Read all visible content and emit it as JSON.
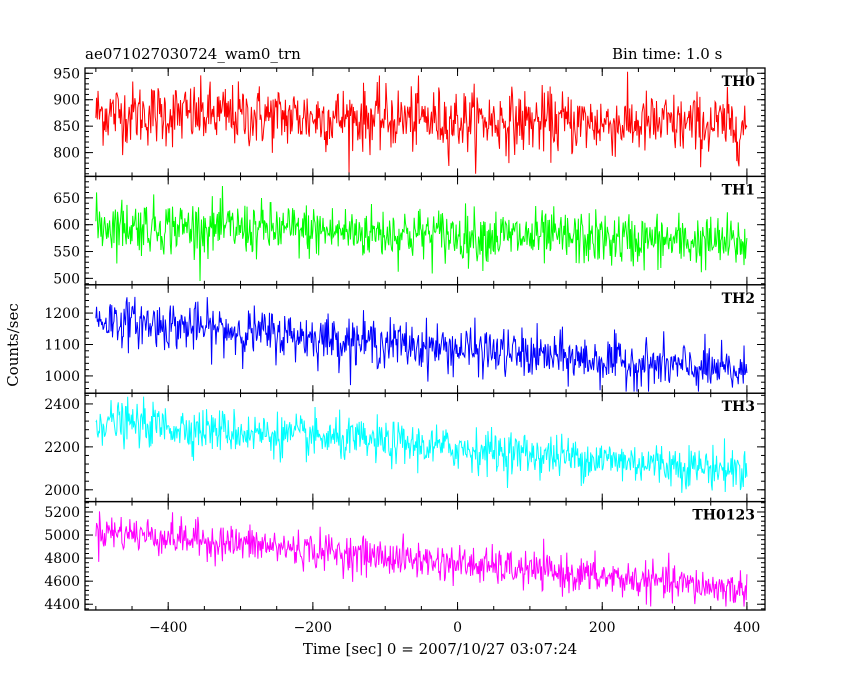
{
  "header": {
    "title": "ae071027030724_wam0_trn",
    "bin_time": "Bin time: 1.0 s"
  },
  "chart_data": {
    "type": "line",
    "title": "ae071027030724_wam0_trn",
    "subtitle": "Bin time: 1.0 s",
    "xlabel": "Time [sec] 0 = 2007/10/27 03:07:24",
    "ylabel": "Counts/sec",
    "xlim": [
      -515,
      425
    ],
    "x_ticks": [
      -400,
      -200,
      0,
      200,
      400
    ],
    "x_range": [
      -500,
      400
    ],
    "grid": false,
    "panels": [
      {
        "name": "TH0",
        "color": "#ff0000",
        "ylim": [
          755,
          960
        ],
        "y_ticks": [
          800,
          850,
          900,
          950
        ],
        "trend_start": 875,
        "trend_end": 850,
        "noise": 30,
        "min": 760,
        "max": 955
      },
      {
        "name": "TH1",
        "color": "#00ff00",
        "ylim": [
          488,
          690
        ],
        "y_ticks": [
          500,
          550,
          600,
          650
        ],
        "trend_start": 600,
        "trend_end": 565,
        "noise": 25,
        "min": 495,
        "max": 685
      },
      {
        "name": "TH2",
        "color": "#0000ff",
        "ylim": [
          945,
          1290
        ],
        "y_ticks": [
          1000,
          1100,
          1200
        ],
        "trend_start": 1180,
        "trend_end": 1010,
        "noise": 38,
        "min": 950,
        "max": 1280
      },
      {
        "name": "TH3",
        "color": "#00ffff",
        "ylim": [
          1945,
          2450
        ],
        "y_ticks": [
          2000,
          2200,
          2400
        ],
        "trend_start": 2320,
        "trend_end": 2090,
        "noise": 50,
        "min": 1960,
        "max": 2440
      },
      {
        "name": "TH0123",
        "color": "#ff00ff",
        "ylim": [
          4350,
          5290
        ],
        "y_ticks": [
          4400,
          4600,
          4800,
          5000,
          5200
        ],
        "trend_start": 5040,
        "trend_end": 4520,
        "noise": 80,
        "min": 4380,
        "max": 5280
      }
    ]
  }
}
